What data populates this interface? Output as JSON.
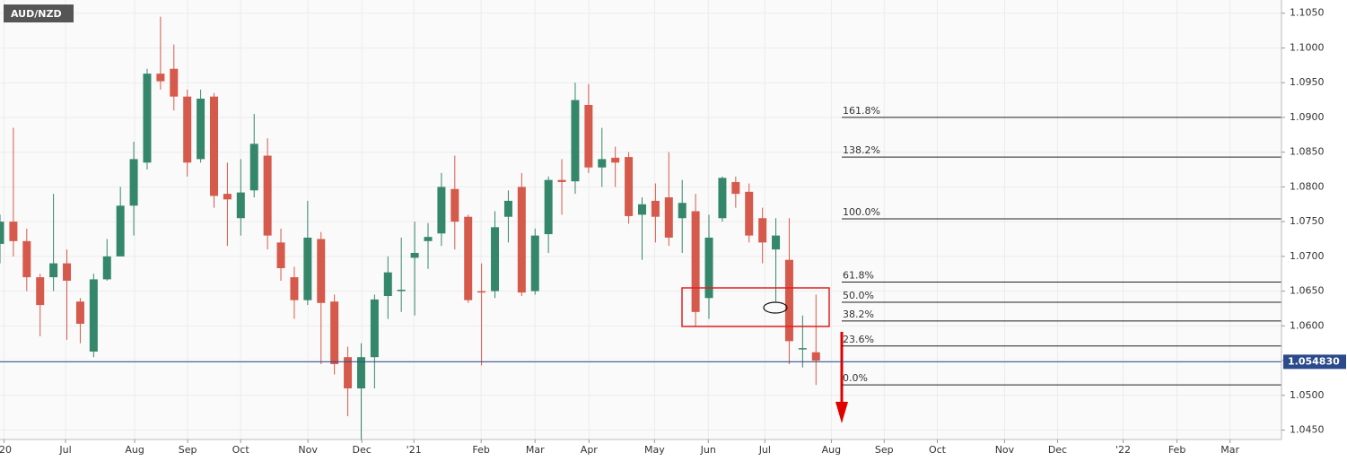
{
  "chart_data": {
    "type": "candlestick",
    "title": "AUD/NZD",
    "x": [
      0,
      1,
      2,
      3,
      4,
      5,
      6,
      7,
      8,
      9,
      10,
      11,
      12,
      13,
      14,
      15,
      16,
      17,
      18,
      19,
      20,
      21,
      22,
      23,
      24,
      25,
      26,
      27,
      28,
      29,
      30,
      31,
      32,
      33,
      34,
      35,
      36,
      37,
      38,
      39,
      40,
      41,
      42,
      43,
      44,
      45,
      46,
      47,
      48,
      49,
      50,
      51,
      52,
      53,
      54,
      55,
      56,
      57,
      58,
      59,
      60,
      61
    ],
    "open": [
      1.0718,
      1.075,
      1.0722,
      1.067,
      1.067,
      1.069,
      1.0635,
      1.0563,
      1.0667,
      1.07,
      1.0773,
      1.0835,
      1.0963,
      1.097,
      1.093,
      1.084,
      1.093,
      1.079,
      1.0755,
      1.0795,
      1.0845,
      1.072,
      1.067,
      1.0637,
      1.0725,
      1.0635,
      1.0555,
      1.051,
      1.0555,
      1.0643,
      1.065,
      1.0698,
      1.0722,
      1.0733,
      1.0797,
      1.0757,
      1.065,
      1.065,
      1.0757,
      1.08,
      1.065,
      1.0732,
      1.081,
      1.0808,
      1.0918,
      1.0828,
      1.0842,
      1.0843,
      1.076,
      1.078,
      1.0785,
      1.0755,
      1.0765,
      1.064,
      1.0755,
      1.0807,
      1.0793,
      1.0755,
      1.071,
      1.0695,
      1.0567,
      1.0562
    ],
    "high": [
      1.076,
      1.0885,
      1.074,
      1.0675,
      1.079,
      1.071,
      1.064,
      1.0675,
      1.0725,
      1.08,
      1.0865,
      1.097,
      1.1045,
      1.1005,
      1.094,
      1.094,
      1.0935,
      1.0835,
      1.084,
      1.0905,
      1.087,
      1.074,
      1.0685,
      1.078,
      1.0735,
      1.0645,
      1.057,
      1.0575,
      1.0645,
      1.07,
      1.0727,
      1.075,
      1.0748,
      1.082,
      1.0845,
      1.076,
      1.069,
      1.0765,
      1.0795,
      1.082,
      1.074,
      1.0815,
      1.084,
      1.095,
      1.0948,
      1.0885,
      1.0858,
      1.085,
      1.0785,
      1.0805,
      1.085,
      1.081,
      1.079,
      1.076,
      1.0815,
      1.0815,
      1.0805,
      1.077,
      1.0755,
      1.0755,
      1.0615,
      1.0645
    ],
    "low": [
      1.069,
      1.07,
      1.065,
      1.0585,
      1.065,
      1.058,
      1.0575,
      1.0555,
      1.0665,
      1.07,
      1.073,
      1.0825,
      1.094,
      1.091,
      1.0815,
      1.0835,
      1.077,
      1.0715,
      1.073,
      1.0785,
      1.071,
      1.0665,
      1.061,
      1.063,
      1.0545,
      1.053,
      1.047,
      1.0435,
      1.051,
      1.061,
      1.062,
      1.0615,
      1.0682,
      1.0715,
      1.071,
      1.0633,
      1.0543,
      1.064,
      1.072,
      1.0643,
      1.0645,
      1.0705,
      1.076,
      1.079,
      1.082,
      1.08,
      1.08,
      1.0747,
      1.0695,
      1.072,
      1.0715,
      1.0705,
      1.06,
      1.061,
      1.075,
      1.077,
      1.072,
      1.069,
      1.0635,
      1.0545,
      1.054,
      1.0515
    ],
    "close": [
      1.075,
      1.0722,
      1.067,
      1.063,
      1.069,
      1.0665,
      1.0603,
      1.0667,
      1.07,
      1.0773,
      1.084,
      1.0963,
      1.0952,
      1.093,
      1.0835,
      1.0927,
      1.0787,
      1.0782,
      1.0792,
      1.0862,
      1.073,
      1.0683,
      1.0637,
      1.0727,
      1.0633,
      1.0545,
      1.051,
      1.0555,
      1.0638,
      1.0677,
      1.0652,
      1.0705,
      1.0728,
      1.08,
      1.075,
      1.0637,
      1.0648,
      1.0742,
      1.078,
      1.0648,
      1.073,
      1.081,
      1.0807,
      1.0925,
      1.0828,
      1.084,
      1.0835,
      1.0758,
      1.0775,
      1.0757,
      1.0727,
      1.0777,
      1.062,
      1.0727,
      1.0813,
      1.079,
      1.073,
      1.072,
      1.073,
      1.0578,
      1.0568,
      1.055
    ],
    "up_color": "#35876b",
    "down_color": "#d65a4c",
    "xlim": [
      0,
      95.8
    ],
    "xticks": [
      {
        "value": 0.3,
        "label": "'20"
      },
      {
        "value": 4.9,
        "label": "Jul"
      },
      {
        "value": 10.07,
        "label": "Aug"
      },
      {
        "value": 14.03,
        "label": "Sep"
      },
      {
        "value": 17.99,
        "label": "Oct"
      },
      {
        "value": 23.02,
        "label": "Nov"
      },
      {
        "value": 27.05,
        "label": "Dec"
      },
      {
        "value": 30.94,
        "label": "'21"
      },
      {
        "value": 35.97,
        "label": "Feb"
      },
      {
        "value": 40,
        "label": "Mar"
      },
      {
        "value": 44.03,
        "label": "Apr"
      },
      {
        "value": 48.93,
        "label": "May"
      },
      {
        "value": 52.95,
        "label": "Jun"
      },
      {
        "value": 57.18,
        "label": "Jul"
      },
      {
        "value": 62.15,
        "label": "Aug"
      },
      {
        "value": 66.1,
        "label": "Sep"
      },
      {
        "value": 70.07,
        "label": "Oct"
      },
      {
        "value": 75.1,
        "label": "Nov"
      },
      {
        "value": 79.06,
        "label": "Dec"
      },
      {
        "value": 83.96,
        "label": "'22"
      },
      {
        "value": 87.99,
        "label": "Feb"
      },
      {
        "value": 91.95,
        "label": "Mar"
      }
    ],
    "ylim": [
      1.04365,
      1.1069
    ],
    "yticks": [
      {
        "value": 1.045,
        "label": "1.0450"
      },
      {
        "value": 1.05,
        "label": "1.0500"
      },
      {
        "value": 1.055,
        "label": "1.0550"
      },
      {
        "value": 1.06,
        "label": "1.0600"
      },
      {
        "value": 1.065,
        "label": "1.0650"
      },
      {
        "value": 1.07,
        "label": "1.0700"
      },
      {
        "value": 1.075,
        "label": "1.0750"
      },
      {
        "value": 1.08,
        "label": "1.0800"
      },
      {
        "value": 1.085,
        "label": "1.0850"
      },
      {
        "value": 1.09,
        "label": "1.0900"
      },
      {
        "value": 1.095,
        "label": "1.0950"
      },
      {
        "value": 1.1,
        "label": "1.1000"
      },
      {
        "value": 1.105,
        "label": "1.1050"
      }
    ],
    "grid": true,
    "fib_levels": [
      {
        "value": 1.09,
        "label": "161.8%"
      },
      {
        "value": 1.0843,
        "label": "138.2%"
      },
      {
        "value": 1.0754,
        "label": "100.0%"
      },
      {
        "value": 1.0663,
        "label": "61.8%"
      },
      {
        "value": 1.0634,
        "label": "50.0%"
      },
      {
        "value": 1.0607,
        "label": "38.2%"
      },
      {
        "value": 1.0571,
        "label": "23.6%"
      },
      {
        "value": 1.0515,
        "label": "0.0%"
      }
    ],
    "last_price": {
      "value": 1.05483,
      "label": "1.054830",
      "color": "#2b4a8c"
    }
  }
}
